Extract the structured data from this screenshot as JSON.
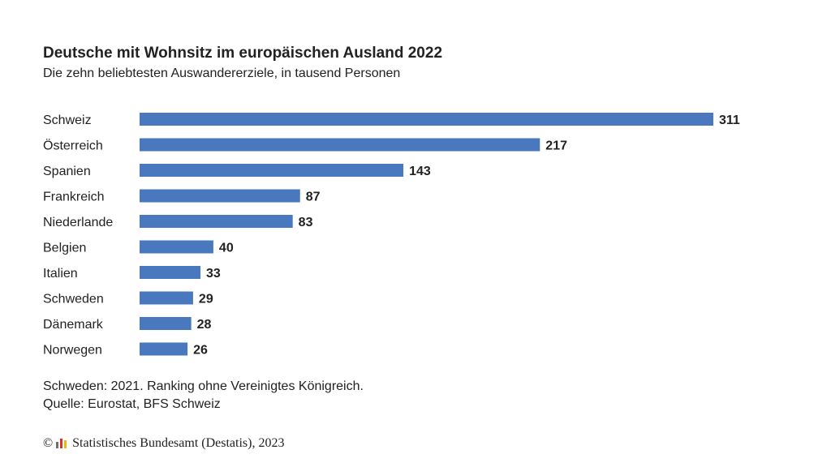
{
  "title": "Deutsche mit Wohnsitz im europäischen Ausland 2022",
  "subtitle": "Die zehn beliebtesten Auswandererziele, in tausend Personen",
  "chart_data": {
    "type": "bar",
    "orientation": "horizontal",
    "title": "Deutsche mit Wohnsitz im europäischen Ausland 2022",
    "subtitle": "Die zehn beliebtesten Auswandererziele, in tausend Personen",
    "categories": [
      "Schweiz",
      "Österreich",
      "Spanien",
      "Frankreich",
      "Niederlande",
      "Belgien",
      "Italien",
      "Schweden",
      "Dänemark",
      "Norwegen"
    ],
    "values": [
      311,
      217,
      143,
      87,
      83,
      40,
      33,
      29,
      28,
      26
    ],
    "data_labels": [
      "311",
      "217",
      "143",
      "87",
      "83",
      "40",
      "33",
      "29",
      "28",
      "26"
    ],
    "xlim": [
      0,
      311
    ],
    "grid": false,
    "bar_color": "#4a78be"
  },
  "footnote": "Schweden: 2021. Ranking ohne Vereinigtes Königreich.",
  "source": "Quelle: Eurostat, BFS Schweiz",
  "copyright": {
    "symbol": "©",
    "text": "Statistisches Bundesamt (Destatis), 2023"
  },
  "colors": {
    "bar": "#4a78be",
    "text": "#222222",
    "logo_bars": [
      "#6e6e6e",
      "#d9342b",
      "#f2b705"
    ]
  }
}
